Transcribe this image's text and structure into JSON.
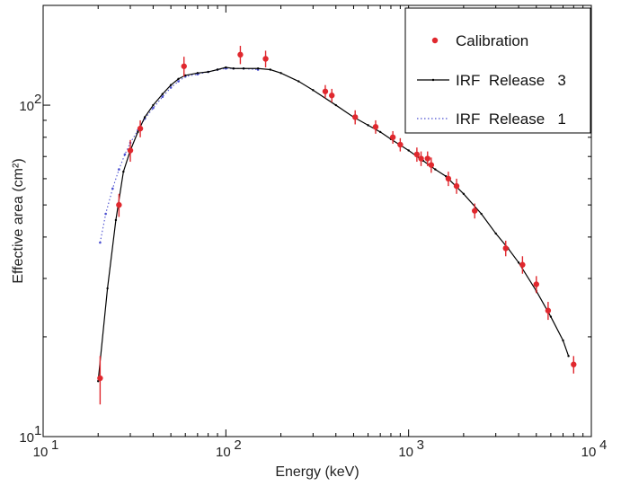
{
  "chart_data": {
    "type": "scatter",
    "xlabel": "Energy (keV)",
    "ylabel": "Effective area (cm²)",
    "xscale": "log",
    "yscale": "log",
    "xlim": [
      10,
      10000
    ],
    "ylim": [
      10,
      200
    ],
    "legend_position": "top-right",
    "grid": false,
    "x_ticks": [
      {
        "value": 10,
        "base": "10",
        "exp": "1"
      },
      {
        "value": 100,
        "base": "10",
        "exp": "2"
      },
      {
        "value": 1000,
        "base": "10",
        "exp": "3"
      },
      {
        "value": 10000,
        "base": "10",
        "exp": "4"
      }
    ],
    "y_ticks": [
      {
        "value": 10,
        "base": "10",
        "exp": "1"
      },
      {
        "value": 100,
        "base": "10",
        "exp": "2"
      }
    ],
    "series": [
      {
        "name": "Calibration",
        "style": "points-errorbars",
        "color": "#e0282e",
        "x": [
          20.5,
          26,
          30,
          34,
          59,
          120,
          165,
          350,
          380,
          510,
          660,
          820,
          900,
          1110,
          1170,
          1270,
          1330,
          1650,
          1830,
          2300,
          3400,
          4200,
          5000,
          5800,
          8000
        ],
        "y": [
          15,
          50,
          73,
          85,
          131,
          142,
          138,
          110,
          107,
          92,
          86,
          80,
          76,
          71,
          69,
          69,
          66,
          60,
          57,
          48,
          37,
          33,
          28.8,
          24,
          16.5
        ],
        "err": [
          2.5,
          4,
          5.5,
          5,
          9,
          9,
          8,
          5,
          5,
          4.5,
          4,
          3.5,
          3.5,
          3.5,
          3.5,
          3.5,
          3.5,
          3,
          3,
          2.5,
          2,
          2,
          1.7,
          1.5,
          1
        ]
      },
      {
        "name": "IRF  Release   3",
        "style": "line-dots",
        "color": "#000000",
        "x": [
          20,
          22.5,
          25,
          27.5,
          30,
          33,
          36,
          40,
          45,
          50,
          55,
          60,
          70,
          80,
          90,
          100,
          110,
          125,
          150,
          175,
          200,
          250,
          300,
          400,
          500,
          600,
          700,
          800,
          1000,
          1200,
          1400,
          1600,
          2000,
          2500,
          3000,
          3500,
          4000,
          5000,
          6000,
          7000,
          7500
        ],
        "y": [
          14.7,
          28,
          45,
          63,
          73,
          83,
          92,
          100,
          108,
          115,
          120,
          123,
          125,
          126,
          128,
          130,
          129,
          129,
          129,
          128,
          125,
          118,
          111,
          100,
          92,
          87,
          83,
          79,
          73,
          68,
          64,
          61,
          54,
          47,
          41,
          37,
          33.5,
          27.5,
          23,
          19.5,
          17.5
        ]
      },
      {
        "name": "IRF  Release   1",
        "style": "dotted",
        "color": "#4a4fd0",
        "x": [
          20.5,
          22,
          24,
          26,
          28,
          30,
          33,
          36,
          40,
          45,
          50,
          55,
          60,
          70,
          80,
          90,
          100,
          110,
          125,
          150
        ],
        "y": [
          38.5,
          47,
          56,
          64,
          71,
          77,
          84,
          91,
          98,
          106,
          113,
          118,
          122,
          124,
          126,
          128,
          129,
          129,
          129,
          128
        ]
      }
    ]
  }
}
